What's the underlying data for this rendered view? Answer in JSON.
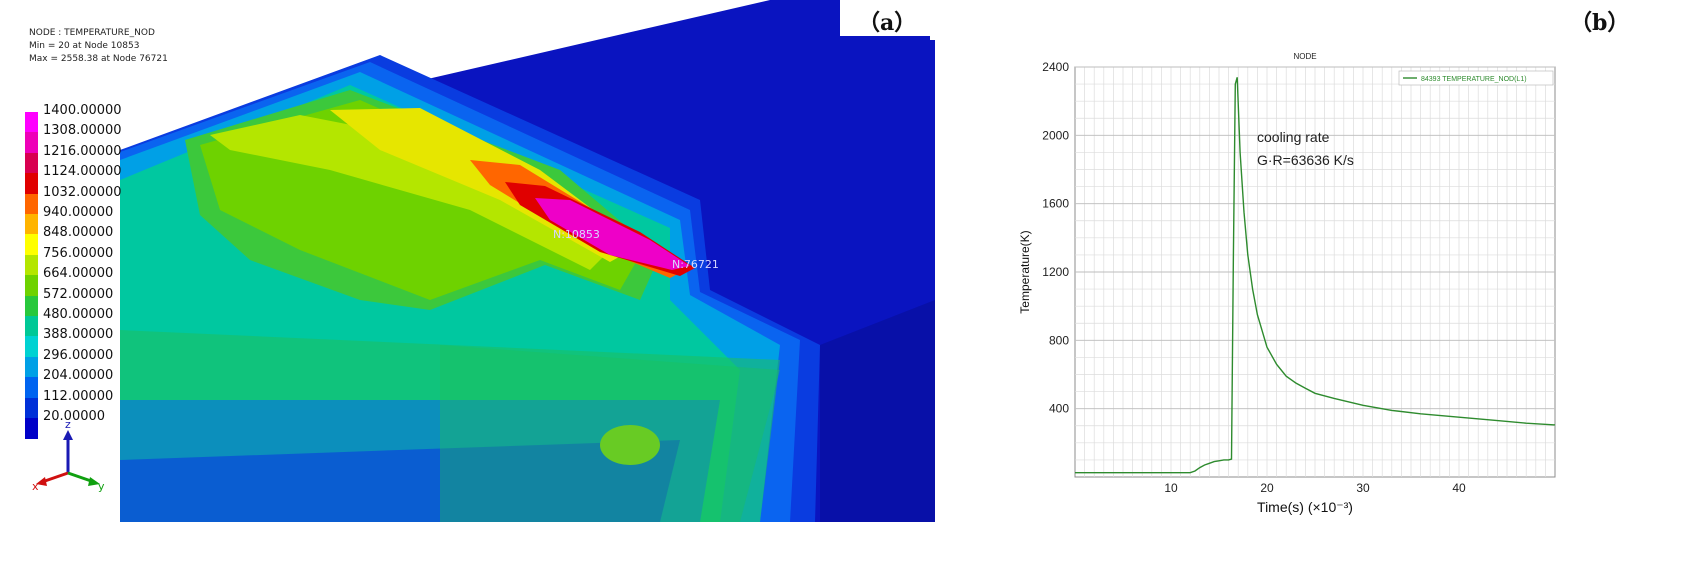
{
  "panel_a": {
    "label": "（a）",
    "header": {
      "line1": "NODE : TEMPERATURE_NOD",
      "line2": "Min = 20 at Node 10853",
      "line3": "Max = 2558.38 at Node 76721"
    },
    "legend": [
      {
        "value": "1400.00000",
        "color": "#ff00ff"
      },
      {
        "value": "1308.00000",
        "color": "#ee00b8"
      },
      {
        "value": "1216.00000",
        "color": "#d80050"
      },
      {
        "value": "1124.00000",
        "color": "#e00000"
      },
      {
        "value": "1032.00000",
        "color": "#ff6600"
      },
      {
        "value": "940.00000",
        "color": "#ffb400"
      },
      {
        "value": "848.00000",
        "color": "#ffff00"
      },
      {
        "value": "756.00000",
        "color": "#b4e600"
      },
      {
        "value": "664.00000",
        "color": "#6ed200"
      },
      {
        "value": "572.00000",
        "color": "#28c83c"
      },
      {
        "value": "480.00000",
        "color": "#00c896"
      },
      {
        "value": "388.00000",
        "color": "#00d2d2"
      },
      {
        "value": "296.00000",
        "color": "#00a0e6"
      },
      {
        "value": "204.00000",
        "color": "#0064f0"
      },
      {
        "value": "112.00000",
        "color": "#0030d8"
      },
      {
        "value": "20.00000",
        "color": "#0000c8"
      }
    ],
    "node_min_tag": "N:10853",
    "node_max_tag": "N:76721",
    "axis_triad": {
      "x": "x",
      "y": "y",
      "z": "z"
    }
  },
  "panel_b": {
    "label": "（b）",
    "annotation_line1": "cooling rate",
    "annotation_line2": "G·R=63636 K/s"
  },
  "chart_data": {
    "type": "line",
    "title": "NODE",
    "xlabel": "Time(s) (×10⁻³)",
    "ylabel": "Temperature(K)",
    "xlim": [
      0,
      50
    ],
    "ylim": [
      0,
      2400
    ],
    "xticks": [
      10,
      20,
      30,
      40
    ],
    "yticks": [
      400,
      800,
      1200,
      1600,
      2000,
      2400
    ],
    "grid": true,
    "legend_position": "top-right",
    "series": [
      {
        "name": "84393 TEMPERATURE_NOD(L1)",
        "color": "#2e8b2e",
        "x": [
          0,
          4,
          8,
          12,
          12.5,
          13,
          13.5,
          14,
          14.5,
          15,
          15.5,
          16,
          16.3,
          16.5,
          16.7,
          16.9,
          17.2,
          17.6,
          18.0,
          18.5,
          19,
          20,
          21,
          22,
          23,
          24,
          25,
          27,
          30,
          33,
          36,
          40,
          44,
          47,
          50
        ],
        "y": [
          25,
          25,
          25,
          25,
          35,
          55,
          70,
          80,
          90,
          95,
          100,
          100,
          105,
          1300,
          2300,
          2340,
          1900,
          1550,
          1300,
          1100,
          950,
          760,
          660,
          590,
          550,
          520,
          490,
          460,
          420,
          390,
          370,
          350,
          330,
          315,
          305
        ]
      }
    ]
  }
}
